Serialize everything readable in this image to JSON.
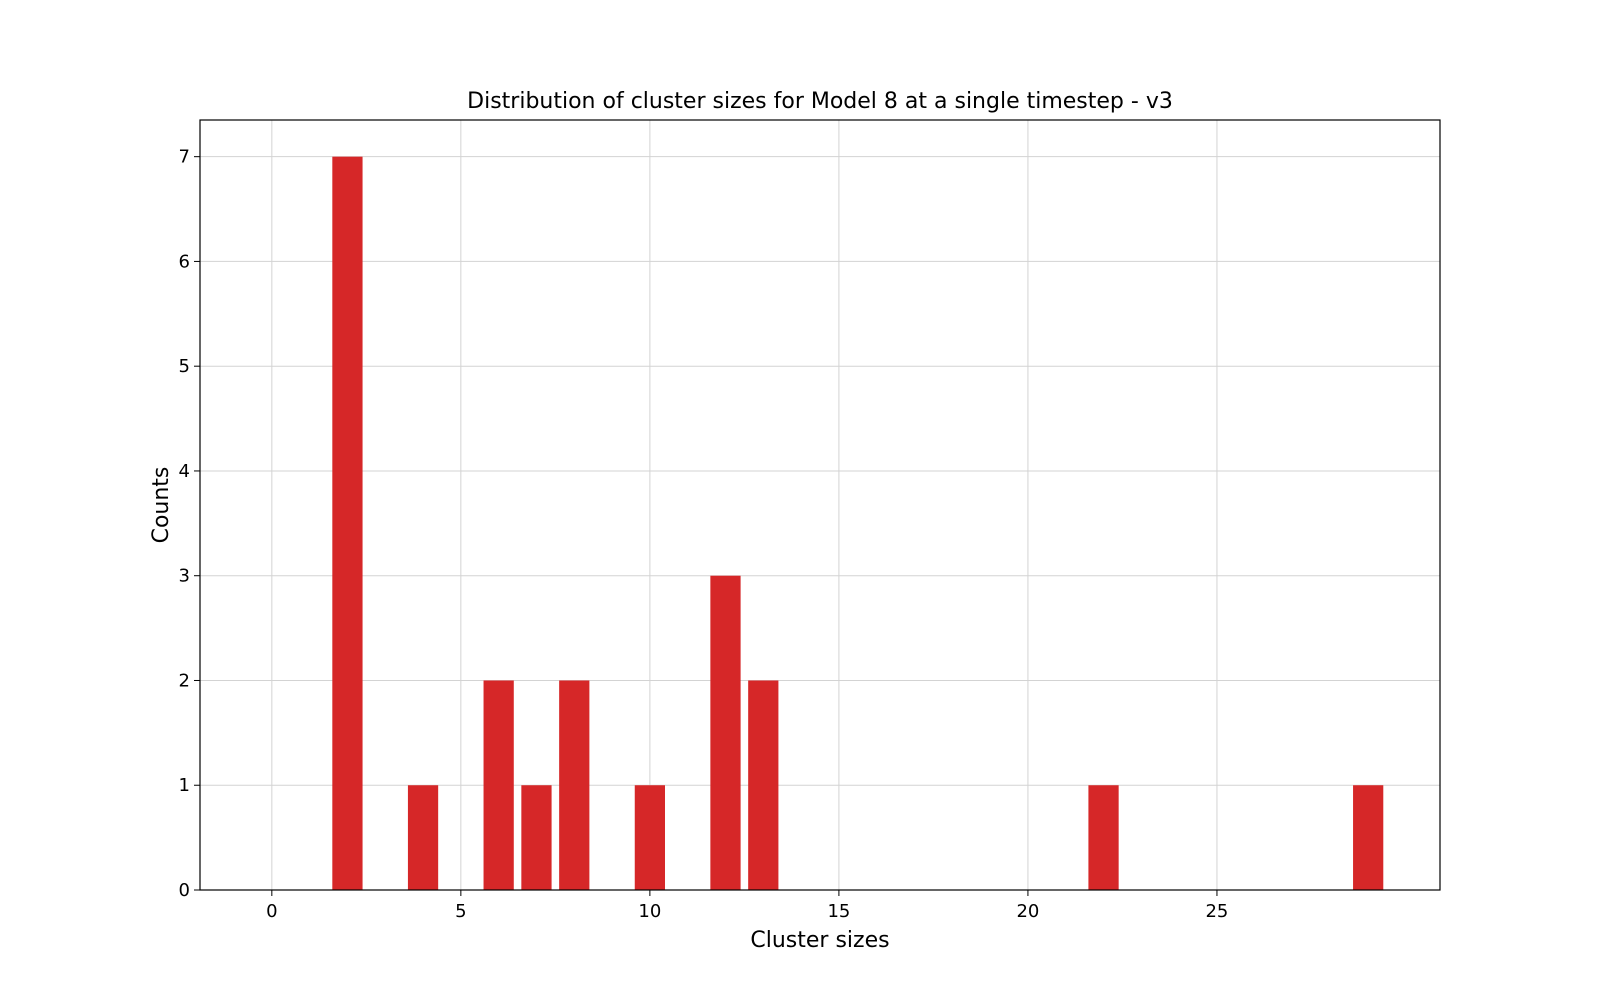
{
  "chart_data": {
    "type": "bar",
    "title": "Distribution of cluster sizes for Model 8 at a single timestep - v3",
    "xlabel": "Cluster sizes",
    "ylabel": "Counts",
    "xlim": [
      -1.9,
      30.9
    ],
    "ylim": [
      0,
      7.35
    ],
    "xticks": [
      0,
      5,
      10,
      15,
      20,
      25
    ],
    "yticks": [
      0,
      1,
      2,
      3,
      4,
      5,
      6,
      7
    ],
    "grid": true,
    "bar_color": "#d62728",
    "bar_width": 0.8,
    "categories": [
      2,
      4,
      6,
      7,
      8,
      10,
      12,
      13,
      22,
      29
    ],
    "values": [
      7,
      1,
      2,
      1,
      2,
      1,
      3,
      2,
      1,
      1
    ]
  }
}
